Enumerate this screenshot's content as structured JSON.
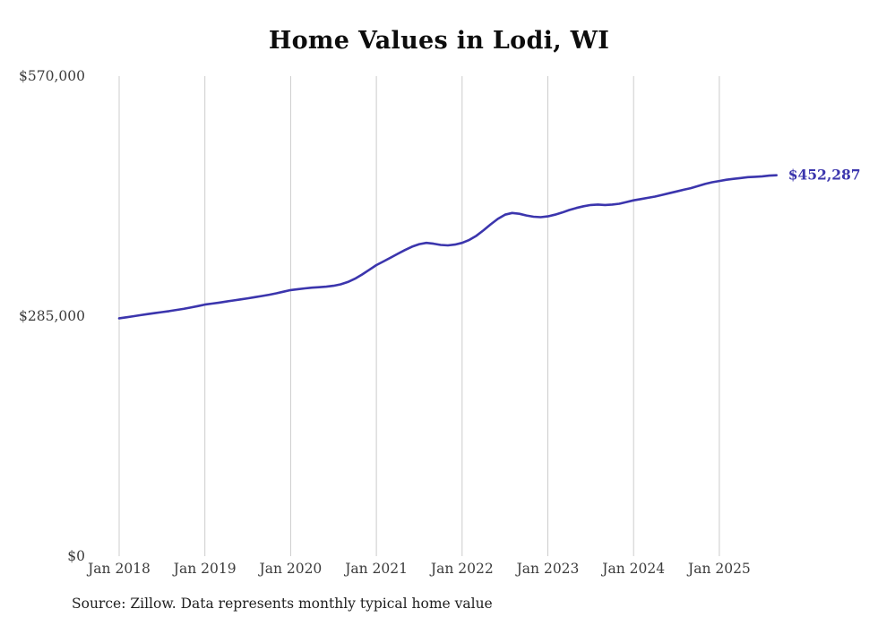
{
  "chart_data": {
    "type": "line",
    "title": "Home Values in Lodi, WI",
    "source": "Source: Zillow. Data represents monthly typical home value",
    "unit": "USD",
    "frequency": "monthly",
    "x_start": "Jan 2018",
    "x_end": "Sep 2025",
    "x_tick_labels": [
      "Jan 2018",
      "Jan 2019",
      "Jan 2020",
      "Jan 2021",
      "Jan 2022",
      "Jan 2023",
      "Jan 2024",
      "Jan 2025"
    ],
    "y_tick_labels": [
      "$0",
      "$285,000",
      "$570,000"
    ],
    "y_ticks": [
      0,
      285000,
      570000
    ],
    "ylim": [
      0,
      570000
    ],
    "grid": "vertical-only",
    "legend": "none",
    "latest_value": 452287,
    "end_label": "$452,287",
    "line_color": "#3b35ad",
    "gridline_color": "#cccccc",
    "label_color": "#3c3c3c",
    "series": [
      {
        "name": "Typical home value",
        "values": [
          282400,
          283600,
          284900,
          286200,
          287400,
          288600,
          289800,
          291000,
          292300,
          293600,
          295200,
          296900,
          298700,
          299900,
          301100,
          302300,
          303600,
          304900,
          306200,
          307500,
          308900,
          310400,
          312100,
          314000,
          315900,
          317000,
          318000,
          318800,
          319400,
          320000,
          321000,
          322800,
          325500,
          329500,
          334500,
          340000,
          345600,
          350000,
          354500,
          359000,
          363500,
          367500,
          370500,
          372000,
          371000,
          369500,
          369000,
          370000,
          372000,
          375500,
          380500,
          387000,
          394000,
          400500,
          405500,
          407500,
          406500,
          404500,
          403000,
          402500,
          403500,
          405500,
          408000,
          411000,
          413500,
          415500,
          417000,
          417500,
          417000,
          417500,
          418500,
          420500,
          422500,
          424000,
          425500,
          427000,
          429000,
          431000,
          433000,
          435000,
          437000,
          439500,
          442000,
          444000,
          445500,
          447000,
          448000,
          449000,
          450000,
          450500,
          451000,
          451800,
          452287
        ]
      }
    ]
  }
}
